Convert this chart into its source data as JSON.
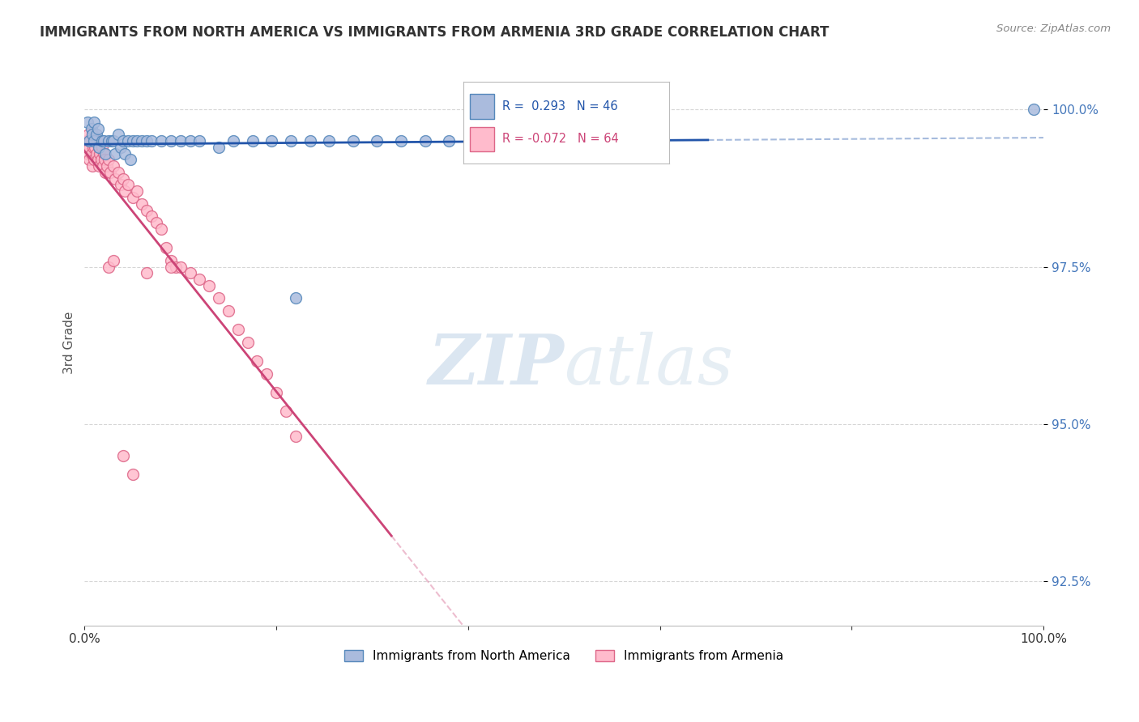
{
  "title": "IMMIGRANTS FROM NORTH AMERICA VS IMMIGRANTS FROM ARMENIA 3RD GRADE CORRELATION CHART",
  "source": "Source: ZipAtlas.com",
  "ylabel": "3rd Grade",
  "xlim": [
    0.0,
    1.0
  ],
  "ylim": [
    91.8,
    100.8
  ],
  "yticks": [
    92.5,
    95.0,
    97.5,
    100.0
  ],
  "ytick_labels": [
    "92.5%",
    "95.0%",
    "97.5%",
    "100.0%"
  ],
  "legend_blue_label": "Immigrants from North America",
  "legend_pink_label": "Immigrants from Armenia",
  "r_blue": 0.293,
  "n_blue": 46,
  "r_pink": -0.072,
  "n_pink": 64,
  "blue_color": "#aabbdd",
  "pink_color": "#ffbbcc",
  "blue_edge_color": "#5588bb",
  "pink_edge_color": "#dd6688",
  "blue_line_color": "#2255aa",
  "pink_line_color": "#cc4477",
  "watermark_zip_color": "#b8cfe8",
  "watermark_atlas_color": "#c8d8e8",
  "blue_scatter_x": [
    0.003,
    0.005,
    0.007,
    0.008,
    0.01,
    0.01,
    0.012,
    0.014,
    0.015,
    0.018,
    0.02,
    0.022,
    0.025,
    0.028,
    0.03,
    0.032,
    0.035,
    0.038,
    0.04,
    0.042,
    0.045,
    0.048,
    0.05,
    0.055,
    0.06,
    0.065,
    0.07,
    0.08,
    0.09,
    0.1,
    0.11,
    0.12,
    0.14,
    0.155,
    0.175,
    0.195,
    0.215,
    0.235,
    0.255,
    0.28,
    0.305,
    0.33,
    0.355,
    0.38,
    0.22,
    0.99
  ],
  "blue_scatter_y": [
    99.8,
    99.5,
    99.7,
    99.6,
    99.8,
    99.5,
    99.6,
    99.7,
    99.4,
    99.5,
    99.5,
    99.3,
    99.5,
    99.5,
    99.5,
    99.3,
    99.6,
    99.4,
    99.5,
    99.3,
    99.5,
    99.2,
    99.5,
    99.5,
    99.5,
    99.5,
    99.5,
    99.5,
    99.5,
    99.5,
    99.5,
    99.5,
    99.4,
    99.5,
    99.5,
    99.5,
    99.5,
    99.5,
    99.5,
    99.5,
    99.5,
    99.5,
    99.5,
    99.5,
    97.0,
    100.0
  ],
  "pink_scatter_x": [
    0.002,
    0.003,
    0.004,
    0.005,
    0.005,
    0.006,
    0.007,
    0.008,
    0.008,
    0.009,
    0.01,
    0.01,
    0.011,
    0.012,
    0.013,
    0.014,
    0.015,
    0.015,
    0.016,
    0.017,
    0.018,
    0.019,
    0.02,
    0.021,
    0.022,
    0.023,
    0.025,
    0.027,
    0.03,
    0.032,
    0.035,
    0.038,
    0.04,
    0.042,
    0.045,
    0.05,
    0.055,
    0.06,
    0.065,
    0.07,
    0.075,
    0.08,
    0.085,
    0.09,
    0.095,
    0.1,
    0.11,
    0.12,
    0.13,
    0.14,
    0.15,
    0.16,
    0.17,
    0.18,
    0.19,
    0.2,
    0.21,
    0.22,
    0.025,
    0.03,
    0.065,
    0.09,
    0.04,
    0.05
  ],
  "pink_scatter_y": [
    99.5,
    99.3,
    99.6,
    99.4,
    99.2,
    99.5,
    99.3,
    99.6,
    99.1,
    99.4,
    99.5,
    99.2,
    99.4,
    99.3,
    99.5,
    99.2,
    99.4,
    99.1,
    99.3,
    99.2,
    99.4,
    99.1,
    99.3,
    99.2,
    99.0,
    99.1,
    99.2,
    99.0,
    99.1,
    98.9,
    99.0,
    98.8,
    98.9,
    98.7,
    98.8,
    98.6,
    98.7,
    98.5,
    98.4,
    98.3,
    98.2,
    98.1,
    97.8,
    97.6,
    97.5,
    97.5,
    97.4,
    97.3,
    97.2,
    97.0,
    96.8,
    96.5,
    96.3,
    96.0,
    95.8,
    95.5,
    95.2,
    94.8,
    97.5,
    97.6,
    97.4,
    97.5,
    94.5,
    94.2
  ]
}
